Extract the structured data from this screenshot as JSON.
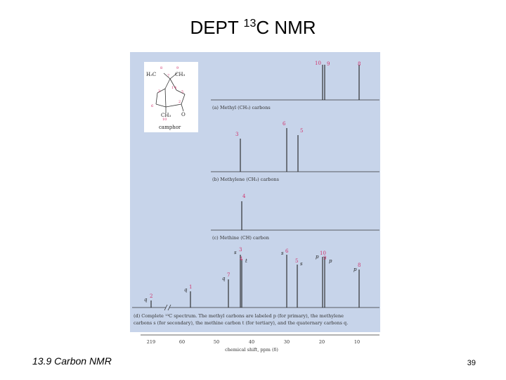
{
  "title": {
    "prefix": "DEPT ",
    "superscript": "13",
    "suffix": "C NMR"
  },
  "footer": {
    "section": "13.9 Carbon NMR",
    "page": "39"
  },
  "figure": {
    "structure": {
      "labels": [
        "H₃C",
        "CH₃",
        "CH₃",
        "O",
        "camphor"
      ],
      "atom_numbers": [
        "8",
        "9",
        "7",
        "1",
        "2",
        "3",
        "4",
        "5",
        "6",
        "10"
      ]
    },
    "spectra": [
      {
        "caption": "(a) Methyl (CH₃) carbons",
        "peak_labels": [
          "10",
          "9",
          "8"
        ]
      },
      {
        "caption": "(b) Methylene (CH₂) carbons",
        "peak_labels": [
          "3",
          "6",
          "5"
        ]
      },
      {
        "caption": "(c) Methine (CH) carbon",
        "peak_labels": [
          "4"
        ]
      },
      {
        "caption_lines": [
          "(d) Complete ¹³C spectrum. The methyl carbons are labeled p (for primary), the methylene",
          "carbons s (for secondary), the methine carbon t (for tertiary), and the quaternary carbons q."
        ],
        "peak_labels": [
          "q",
          "2",
          "q",
          "1",
          "q",
          "7",
          "s",
          "3",
          "4",
          "t",
          "s",
          "6",
          "5",
          "s",
          "p",
          "10",
          "9",
          "p",
          "p",
          "8"
        ]
      }
    ],
    "axis": {
      "ticks": [
        "219",
        "60",
        "50",
        "40",
        "30",
        "20",
        "10"
      ],
      "label": "chemical shift, ppm (δ)"
    }
  }
}
